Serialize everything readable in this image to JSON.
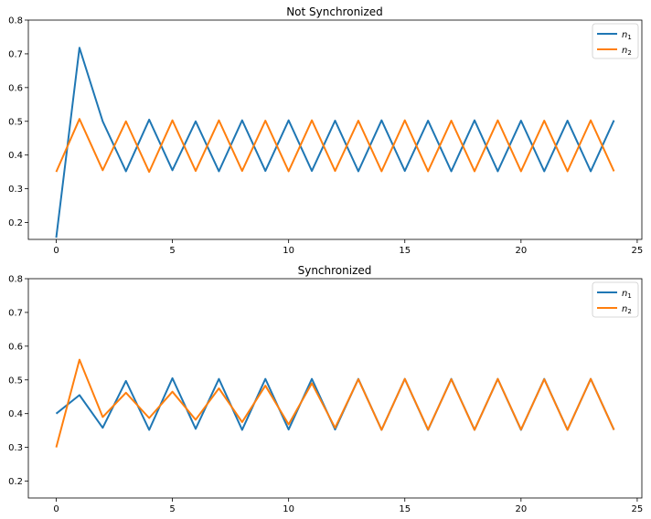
{
  "chart_data": [
    {
      "type": "line",
      "title": "Not Synchronized",
      "xlabel": "",
      "ylabel": "",
      "xlim": [
        -1.2,
        25.2
      ],
      "ylim": [
        0.15,
        0.8
      ],
      "xticks": [
        0,
        5,
        10,
        15,
        20,
        25
      ],
      "yticks": [
        0.2,
        0.3,
        0.4,
        0.5,
        0.6,
        0.7,
        0.8
      ],
      "ytick_labels": [
        "0.2",
        "0.3",
        "0.4",
        "0.5",
        "0.6",
        "0.7",
        "0.8"
      ],
      "grid": false,
      "legend_position": "top-right",
      "x": [
        0,
        1,
        2,
        3,
        4,
        5,
        6,
        7,
        8,
        9,
        10,
        11,
        12,
        13,
        14,
        15,
        16,
        17,
        18,
        19,
        20,
        21,
        22,
        23,
        24
      ],
      "series": [
        {
          "name": "n1",
          "color": "#1f77b4",
          "values": [
            0.155,
            0.718,
            0.5,
            0.352,
            0.505,
            0.355,
            0.5,
            0.352,
            0.503,
            0.353,
            0.503,
            0.353,
            0.502,
            0.352,
            0.503,
            0.353,
            0.502,
            0.352,
            0.503,
            0.352,
            0.502,
            0.352,
            0.502,
            0.352,
            0.503
          ]
        },
        {
          "name": "n2",
          "color": "#ff7f0e",
          "values": [
            0.35,
            0.507,
            0.355,
            0.5,
            0.35,
            0.503,
            0.353,
            0.503,
            0.353,
            0.502,
            0.352,
            0.503,
            0.353,
            0.502,
            0.352,
            0.503,
            0.352,
            0.502,
            0.352,
            0.503,
            0.352,
            0.502,
            0.352,
            0.503,
            0.352
          ]
        }
      ]
    },
    {
      "type": "line",
      "title": "Synchronized",
      "xlabel": "",
      "ylabel": "",
      "xlim": [
        -1.2,
        25.2
      ],
      "ylim": [
        0.15,
        0.8
      ],
      "xticks": [
        0,
        5,
        10,
        15,
        20,
        25
      ],
      "yticks": [
        0.2,
        0.3,
        0.4,
        0.5,
        0.6,
        0.7,
        0.8
      ],
      "ytick_labels": [
        "0.2",
        "0.3",
        "0.4",
        "0.5",
        "0.6",
        "0.7",
        "0.8"
      ],
      "grid": false,
      "legend_position": "top-right",
      "x": [
        0,
        1,
        2,
        3,
        4,
        5,
        6,
        7,
        8,
        9,
        10,
        11,
        12,
        13,
        14,
        15,
        16,
        17,
        18,
        19,
        20,
        21,
        22,
        23,
        24
      ],
      "series": [
        {
          "name": "n1",
          "color": "#1f77b4",
          "values": [
            0.4,
            0.455,
            0.358,
            0.497,
            0.352,
            0.505,
            0.355,
            0.503,
            0.352,
            0.503,
            0.353,
            0.503,
            0.353,
            0.503,
            0.352,
            0.503,
            0.352,
            0.503,
            0.352,
            0.503,
            0.352,
            0.503,
            0.352,
            0.503,
            0.352
          ]
        },
        {
          "name": "n2",
          "color": "#ff7f0e",
          "values": [
            0.3,
            0.56,
            0.39,
            0.462,
            0.387,
            0.465,
            0.382,
            0.475,
            0.375,
            0.483,
            0.368,
            0.49,
            0.358,
            0.502,
            0.352,
            0.503,
            0.353,
            0.502,
            0.352,
            0.503,
            0.353,
            0.502,
            0.352,
            0.503,
            0.352
          ]
        }
      ]
    }
  ]
}
